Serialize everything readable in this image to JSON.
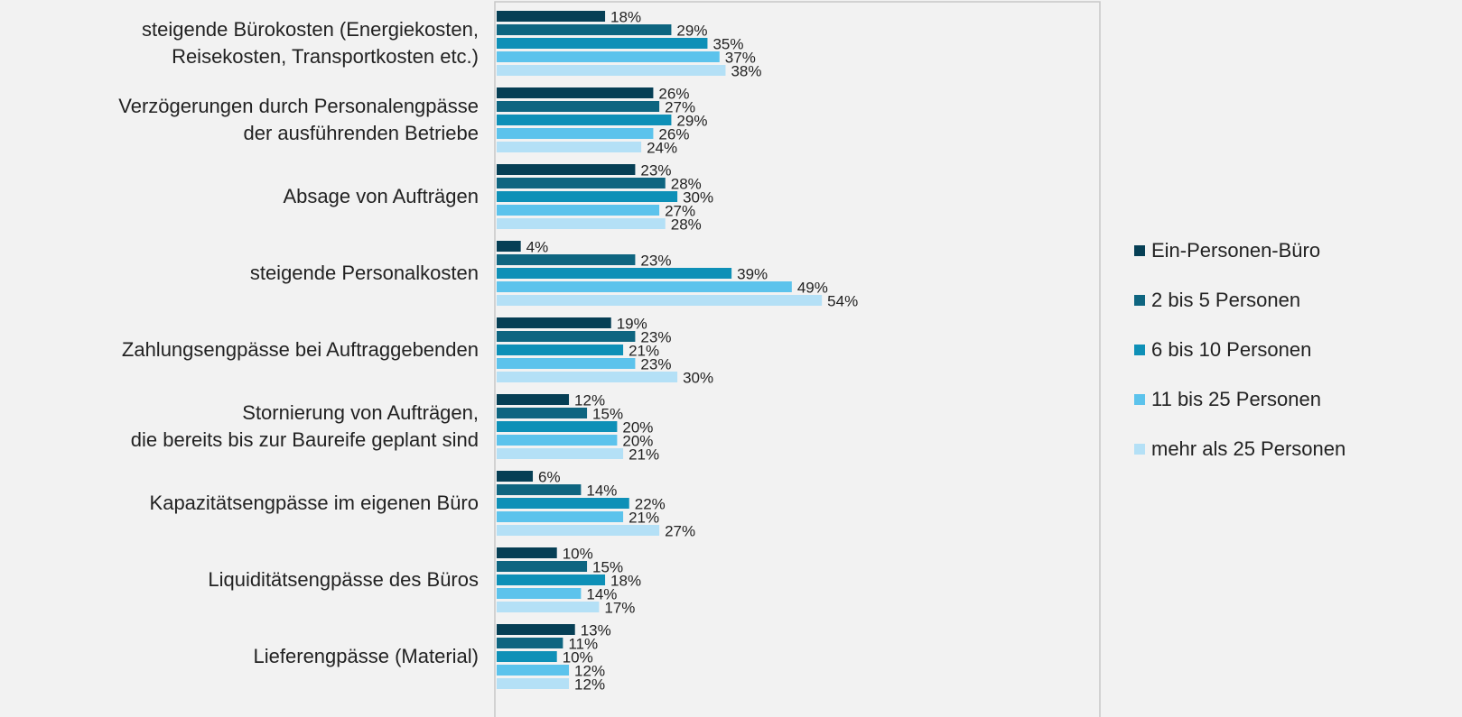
{
  "chart_data": {
    "type": "bar",
    "orientation": "horizontal",
    "categories": [
      "steigende Bürokosten (Energiekosten,\nReisekosten, Transportkosten etc.)",
      "Verzögerungen durch Personalengpässe\nder ausführenden Betriebe",
      "Absage von Aufträgen",
      "steigende Personalkosten",
      "Zahlungsengpässe bei Auftraggebenden",
      "Stornierung von Aufträgen,\ndie bereits bis zur Baureife geplant sind",
      "Kapazitätsengpässe im eigenen Büro",
      "Liquiditätsengpässe des Büros",
      "Lieferengpässe (Material)"
    ],
    "series": [
      {
        "name": "Ein-Personen-Büro",
        "color": "#063f55",
        "values": [
          18,
          26,
          23,
          4,
          19,
          12,
          6,
          10,
          13
        ],
        "value_labels": [
          "18%",
          "26%",
          "23%",
          "4%",
          "19%",
          "12%",
          "6%",
          "10%",
          "13%"
        ]
      },
      {
        "name": "2 bis 5 Personen",
        "color": "#0e6580",
        "values": [
          29,
          27,
          28,
          23,
          23,
          15,
          14,
          15,
          11
        ],
        "value_labels": [
          "29%",
          "27%",
          "28%",
          "23%",
          "23%",
          "15%",
          "14%",
          "15%",
          "11%"
        ]
      },
      {
        "name": "6 bis 10 Personen",
        "color": "#0e90b7",
        "values": [
          35,
          29,
          30,
          39,
          21,
          20,
          22,
          18,
          10
        ],
        "value_labels": [
          "35%",
          "29%",
          "30%",
          "39%",
          "21%",
          "20%",
          "22%",
          "18%",
          "10%"
        ]
      },
      {
        "name": "11 bis 25 Personen",
        "color": "#5cc3ec",
        "values": [
          37,
          26,
          27,
          49,
          23,
          20,
          21,
          14,
          12
        ],
        "value_labels": [
          "37%",
          "26%",
          "27%",
          "49%",
          "23%",
          "20%",
          "21%",
          "14%",
          "12%"
        ]
      },
      {
        "name": "mehr als 25 Personen",
        "color": "#b4e0f6",
        "values": [
          38,
          24,
          28,
          54,
          30,
          21,
          27,
          17,
          12
        ],
        "value_labels": [
          "38%",
          "24%",
          "28%",
          "54%",
          "30%",
          "21%",
          "27%",
          "17%",
          "12%"
        ]
      }
    ],
    "xlim": [
      0,
      100
    ],
    "legend": "right"
  }
}
